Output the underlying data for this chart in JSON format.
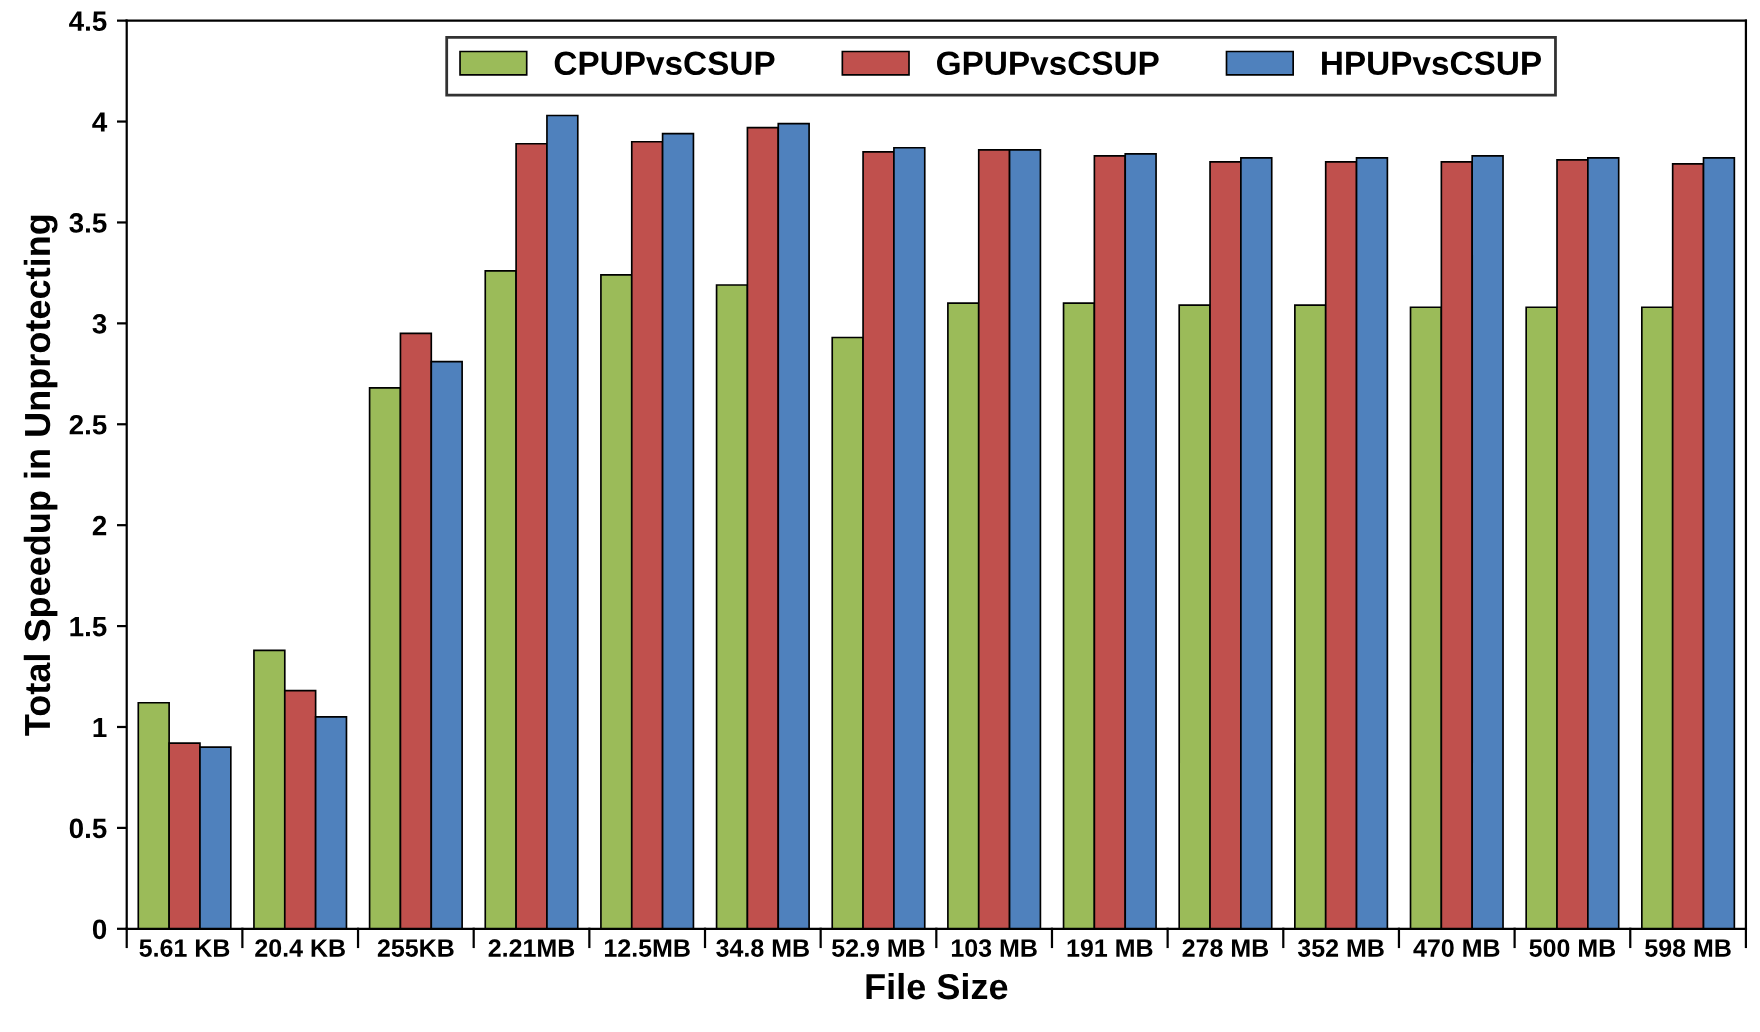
{
  "chart_data": {
    "type": "bar",
    "xlabel": "File Size",
    "ylabel": "Total Speedup in Unprotecting",
    "categories": [
      "5.61 KB",
      "20.4 KB",
      "255KB",
      "2.21MB",
      "12.5MB",
      "34.8 MB",
      "52.9 MB",
      "103 MB",
      "191 MB",
      "278 MB",
      "352 MB",
      "470 MB",
      "500 MB",
      "598 MB"
    ],
    "series": [
      {
        "name": "CPUPvsCSUP",
        "color": "#9bbb59",
        "values": [
          1.12,
          1.38,
          2.68,
          3.26,
          3.24,
          3.19,
          2.93,
          3.1,
          3.1,
          3.09,
          3.09,
          3.08,
          3.08,
          3.08
        ]
      },
      {
        "name": "GPUPvsCSUP",
        "color": "#c0504d",
        "values": [
          0.92,
          1.18,
          2.95,
          3.89,
          3.9,
          3.97,
          3.85,
          3.86,
          3.83,
          3.8,
          3.8,
          3.8,
          3.81,
          3.79
        ]
      },
      {
        "name": "HPUPvsCSUP",
        "color": "#4f81bd",
        "values": [
          0.9,
          1.05,
          2.81,
          4.03,
          3.94,
          3.99,
          3.87,
          3.86,
          3.84,
          3.82,
          3.82,
          3.83,
          3.82,
          3.82
        ]
      }
    ],
    "ylim": [
      0,
      4.5
    ],
    "yticks": [
      0,
      0.5,
      1,
      1.5,
      2,
      2.5,
      3,
      3.5,
      4,
      4.5
    ],
    "grid": false,
    "legend": "top"
  }
}
